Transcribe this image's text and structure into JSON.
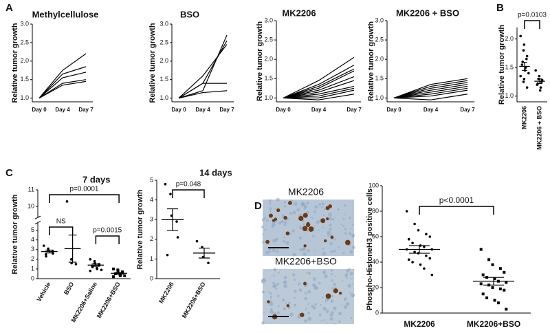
{
  "panel_labels": [
    "A",
    "B",
    "C",
    "D"
  ],
  "image_labels": [
    "MK2206",
    "MK2206+BSO"
  ],
  "chart_data": [
    {
      "type": "line",
      "title": "Methylcellulose",
      "y_label": "Relative tumor growth",
      "x": [
        "Day 0",
        "Day 4",
        "Day 7"
      ],
      "color": "#000000",
      "ylim": [
        0.9,
        3.0
      ],
      "yticks": [
        {
          "value": 1,
          "label": "1.0"
        },
        1.5,
        {
          "value": 2,
          "label": "2.0"
        },
        2.5,
        {
          "value": 3,
          "label": "3.0"
        }
      ],
      "series": [
        {
          "values": [
            1,
            1.75,
            2.2
          ]
        },
        {
          "values": [
            1,
            1.65,
            1.85
          ]
        },
        {
          "values": [
            1,
            1.55,
            1.7
          ]
        },
        {
          "values": [
            1,
            1.4,
            1.5
          ]
        },
        {
          "values": [
            1,
            1.35,
            1.45
          ]
        }
      ]
    },
    {
      "type": "line",
      "title": "BSO",
      "y_label": "Relative tumor growth",
      "x": [
        "Day 0",
        "Day 4",
        "Day 7"
      ],
      "color": "#000000",
      "ylim": [
        0.9,
        3.0
      ],
      "yticks": [
        {
          "value": 1,
          "label": "1.0"
        },
        1.5,
        {
          "value": 2,
          "label": "2.0"
        },
        2.5,
        {
          "value": 3,
          "label": "3.0"
        }
      ],
      "series": [
        {
          "values": [
            1,
            1.2,
            2.7
          ]
        },
        {
          "values": [
            1,
            1.4,
            2.55
          ]
        },
        {
          "values": [
            1,
            1.6,
            2.45
          ]
        },
        {
          "values": [
            1,
            1.4,
            1.4
          ]
        },
        {
          "values": [
            1,
            1.15,
            1.2
          ]
        }
      ]
    },
    {
      "type": "line",
      "title": "MK2206",
      "y_label": "Relative tumor growth",
      "x": [
        "Day 0",
        "Day 4",
        "Day 7"
      ],
      "color": "#000000",
      "ylim": [
        0.9,
        3.0
      ],
      "yticks": [
        {
          "value": 1,
          "label": "1.0"
        },
        1.5,
        {
          "value": 2,
          "label": "2.0"
        },
        2.5,
        {
          "value": 3,
          "label": "3.0"
        }
      ],
      "series": [
        {
          "values": [
            1,
            1.45,
            2.05
          ]
        },
        {
          "values": [
            1,
            1.35,
            1.85
          ]
        },
        {
          "values": [
            1,
            1.3,
            1.75
          ]
        },
        {
          "values": [
            1,
            1.25,
            1.7
          ]
        },
        {
          "values": [
            1,
            1.2,
            1.55
          ]
        },
        {
          "values": [
            1,
            1.15,
            1.45
          ]
        },
        {
          "values": [
            1,
            1.1,
            1.3
          ]
        },
        {
          "values": [
            1,
            1.05,
            1.25
          ]
        },
        {
          "values": [
            1,
            1.0,
            1.2
          ]
        },
        {
          "values": [
            1,
            0.95,
            1.1
          ]
        }
      ]
    },
    {
      "type": "line",
      "title": "MK2206 + BSO",
      "y_label": "Relative tumor growth",
      "x": [
        "Day 0",
        "Day 4",
        "Day 7"
      ],
      "color": "#000000",
      "ylim": [
        0.9,
        3.0
      ],
      "yticks": [
        {
          "value": 1,
          "label": "1.0"
        },
        1.5,
        {
          "value": 2,
          "label": "2.0"
        },
        2.5,
        {
          "value": 3,
          "label": "3.0"
        }
      ],
      "series": [
        {
          "values": [
            1,
            1.35,
            1.5
          ]
        },
        {
          "values": [
            1,
            1.3,
            1.45
          ]
        },
        {
          "values": [
            1,
            1.25,
            1.4
          ]
        },
        {
          "values": [
            1,
            1.2,
            1.35
          ]
        },
        {
          "values": [
            1,
            1.15,
            1.3
          ]
        },
        {
          "values": [
            1,
            1.1,
            1.25
          ]
        },
        {
          "values": [
            1,
            1.05,
            1.2
          ]
        },
        {
          "values": [
            1,
            0.95,
            1.1
          ]
        }
      ]
    },
    {
      "type": "dot",
      "y_label": "Relative tumor growth",
      "color": "#000000",
      "ylim": [
        0.9,
        2.2
      ],
      "yticks": [
        {
          "value": 1,
          "label": "1.0"
        },
        1.5,
        {
          "value": 2,
          "label": "2.0"
        }
      ],
      "groups": [
        {
          "name": "MK2206",
          "marker": "circle",
          "values": [
            2.05,
            1.9,
            1.8,
            1.7,
            1.65,
            1.6,
            1.55,
            1.5,
            1.45,
            1.4,
            1.35,
            1.3,
            1.25,
            1.15
          ],
          "mean": 1.52,
          "sem": 0.07
        },
        {
          "name": "MK2206 + BSO",
          "marker": "circle",
          "values": [
            1.45,
            1.35,
            1.3,
            1.28,
            1.25,
            1.22,
            1.2,
            1.15,
            1.1
          ],
          "mean": 1.26,
          "sem": 0.04
        }
      ],
      "annotations": [
        {
          "text": "p=0.0103",
          "between": [
            0,
            1
          ]
        }
      ]
    },
    {
      "type": "dot",
      "title": "7 days",
      "y_label": "Relative tumor growth",
      "color": "#000000",
      "ylim": [
        0,
        11
      ],
      "ybreak": [
        5.5,
        9.5
      ],
      "yticks": [
        0,
        1,
        2,
        3,
        4,
        5,
        10,
        11
      ],
      "groups": [
        {
          "name": "Vehicle",
          "marker": "circle",
          "values": [
            3.4,
            3.1,
            2.9,
            2.8,
            2.6,
            2.5,
            2.3
          ],
          "mean": 2.8,
          "sem": 0.15
        },
        {
          "name": "BSO",
          "marker": "circle",
          "values": [
            10.3,
            2.0,
            1.6,
            1.5
          ],
          "mean": 3.1,
          "sem": 1.4
        },
        {
          "name": "MK2206+Saline",
          "marker": "circle",
          "values": [
            2.0,
            1.8,
            1.6,
            1.5,
            1.4,
            1.3,
            1.2,
            1.1,
            1.0,
            0.9,
            0.8
          ],
          "mean": 1.4,
          "sem": 0.12
        },
        {
          "name": "MK2206+BSO",
          "marker": "square",
          "values": [
            1.0,
            0.9,
            0.8,
            0.7,
            0.6,
            0.5,
            0.5,
            0.4,
            0.3,
            0.3,
            0.2
          ],
          "mean": 0.55,
          "sem": 0.08
        }
      ],
      "annotations": [
        {
          "text": "NS",
          "between": [
            0,
            1
          ]
        },
        {
          "text": "p=0.0001",
          "between": [
            0,
            3
          ]
        },
        {
          "text": "p=0.0015",
          "between": [
            2,
            3
          ]
        }
      ]
    },
    {
      "type": "dot",
      "title": "14 days",
      "y_label": "Relative tumor growth",
      "color": "#000000",
      "ylim": [
        0,
        5
      ],
      "yticks": [
        0,
        1,
        2,
        3,
        4,
        5
      ],
      "groups": [
        {
          "name": "MK2206",
          "marker": "circle",
          "values": [
            4.8,
            4.3,
            3.2,
            2.9,
            2.1,
            1.2
          ],
          "mean": 3.0,
          "sem": 0.55
        },
        {
          "name": "MK2206+BSO",
          "marker": "circle",
          "values": [
            1.9,
            1.6,
            1.1,
            0.8
          ],
          "mean": 1.3,
          "sem": 0.25
        }
      ],
      "annotations": [
        {
          "text": "p=0.048",
          "between": [
            0,
            1
          ]
        }
      ]
    },
    {
      "type": "dot",
      "y_label": "Phospho-HistoneH3 positive cells",
      "color": "#000000",
      "ylim": [
        0,
        100
      ],
      "yticks": [
        0,
        20,
        40,
        60,
        80,
        100
      ],
      "groups": [
        {
          "name": "MK2206",
          "marker": "circle",
          "values": [
            80,
            70,
            65,
            62,
            60,
            58,
            55,
            53,
            52,
            50,
            50,
            48,
            47,
            45,
            43,
            42,
            40,
            38,
            35,
            30
          ],
          "mean": 50,
          "sem": 3
        },
        {
          "name": "MK2206+BSO",
          "marker": "square",
          "values": [
            50,
            42,
            38,
            35,
            32,
            30,
            28,
            27,
            25,
            24,
            23,
            22,
            20,
            19,
            18,
            15,
            12,
            10,
            8,
            3
          ],
          "mean": 25,
          "sem": 3
        }
      ],
      "annotations": [
        {
          "text": "p<0.0001",
          "between": [
            0,
            1
          ]
        }
      ]
    }
  ]
}
